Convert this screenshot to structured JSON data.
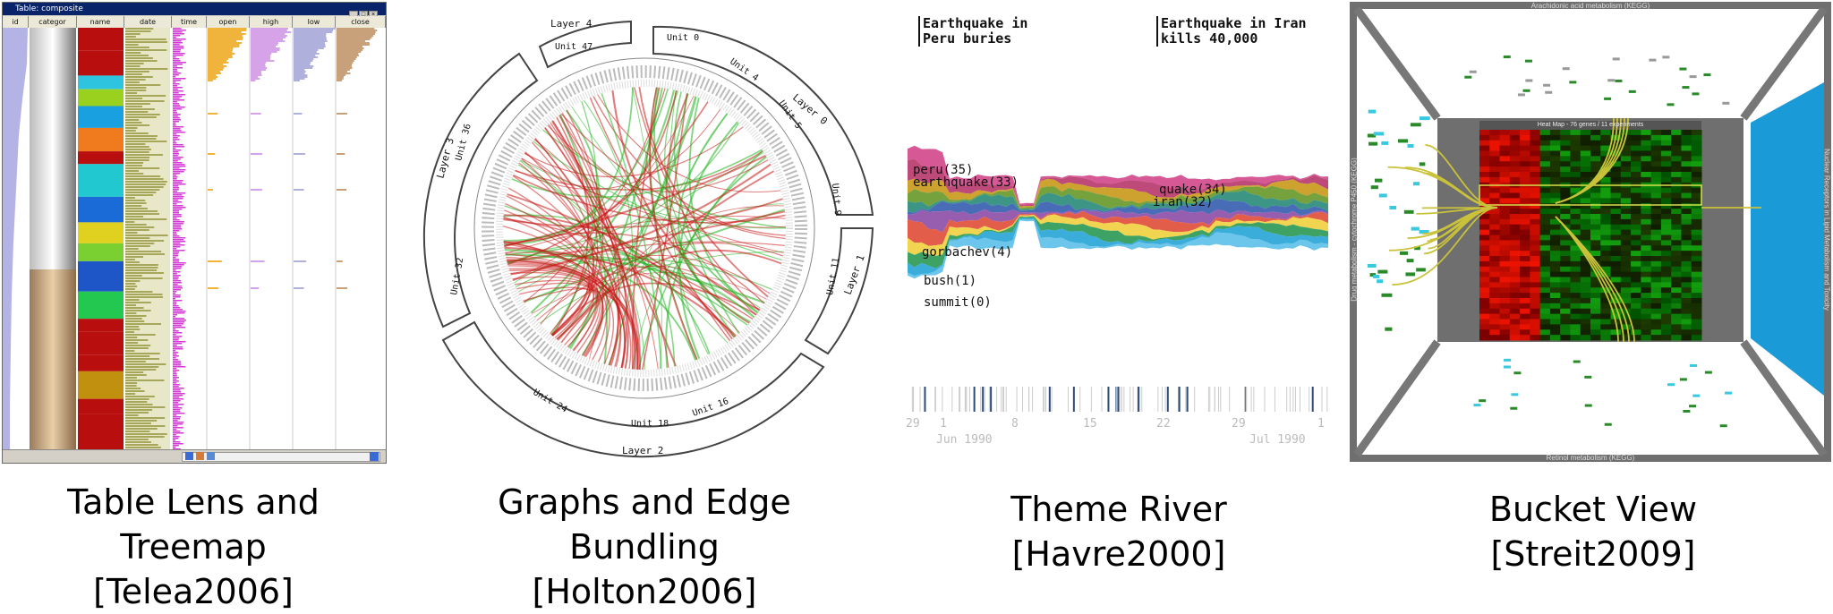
{
  "captions": [
    {
      "title": "Table Lens and Treemap",
      "ref": "[Telea2006]"
    },
    {
      "title": "Graphs and Edge Bundling",
      "ref": "[Holton2006]"
    },
    {
      "title": "Theme River",
      "ref": "[Havre2000]"
    },
    {
      "title": "Bucket View",
      "ref": "[Streit2009]"
    }
  ],
  "table_lens": {
    "window_title": "Table: composite",
    "window_buttons": [
      "_",
      "□",
      "×"
    ],
    "columns": [
      "id",
      "categor",
      "name",
      "date",
      "time",
      "open",
      "high",
      "low",
      "close"
    ],
    "colors": {
      "id": "#b3b3e6",
      "name": "#b80e0e",
      "date": "#a7a75c",
      "time": "#d43bd4",
      "open": "#f0b43c",
      "high": "#d6a3e8",
      "low": "#b0b0dc",
      "close": "#c8a07a"
    }
  },
  "edge_bundling": {
    "layers": [
      "Layer 4",
      "Layer 0",
      "Layer 1",
      "Layer 2",
      "Layer 3"
    ],
    "units": [
      "Unit 0",
      "Unit 4",
      "Unit 5",
      "Unit 9",
      "Unit 11",
      "Unit 16",
      "Unit 18",
      "Unit 24",
      "Unit 32",
      "Unit 36",
      "Unit 47"
    ],
    "colors": {
      "start": "#1fb41f",
      "end": "#c81414"
    }
  },
  "theme_river": {
    "annotations": [
      {
        "lines": [
          "Earthquake in",
          "Peru buries"
        ]
      },
      {
        "lines": [
          "Earthquake in Iran",
          "kills 40,000"
        ]
      }
    ],
    "labels": [
      "peru(35)",
      "earthquake(33)",
      "quake(34)",
      "iran(32)",
      "gorbachev(4)",
      "bush(1)",
      "summit(0)"
    ],
    "axis_ticks": [
      "29",
      "1",
      "8",
      "15",
      "22",
      "29",
      "1"
    ],
    "axis_months": [
      "Jun 1990",
      "Jul 1990"
    ],
    "layer_colors": [
      "#d24a8c",
      "#b73b6e",
      "#c99a1c",
      "#6a9a2c",
      "#2c8c7c",
      "#3a5fb0",
      "#8e4fa8",
      "#e0503c",
      "#f0d040",
      "#2f9a58",
      "#2aa6d8",
      "#5fc0e8"
    ]
  },
  "bucket_view": {
    "top_label": "Arachidonic acid metabolism (KEGG)",
    "heatmap_label": "Heat Map - 76 genes / 11 experiments",
    "bottom_label": "Retinol metabolism (KEGG)",
    "left_label": "Drug metabolism - cytochrome P450 (KEGG)",
    "right_label": "Nuclear Receptors in Lipid Metabolism and Toxicity",
    "colors": {
      "frame": "#6f6f6f",
      "heat_red": "#c80000",
      "heat_green": "#12b012",
      "right_wall": "#1a9ad6",
      "lines": "#c9c23a"
    }
  }
}
